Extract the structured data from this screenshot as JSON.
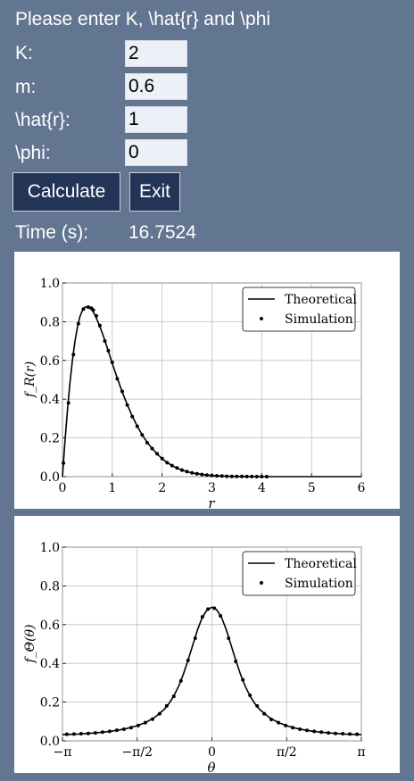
{
  "form": {
    "heading": "Please enter K, \\hat{r} and \\phi",
    "fields": [
      {
        "label": "K:",
        "value": "2"
      },
      {
        "label": "m:",
        "value": "0.6"
      },
      {
        "label": "\\hat{r}:",
        "value": "1"
      },
      {
        "label": "\\phi:",
        "value": "0"
      }
    ],
    "calculate_label": "Calculate",
    "exit_label": "Exit",
    "time_label": "Time (s):",
    "time_value": "16.7524"
  },
  "colors": {
    "background": "#637691",
    "button": "#223556",
    "input": "#eef0f7",
    "plot_line": "#000000"
  },
  "chart_data": [
    {
      "type": "line",
      "title": "",
      "xlabel": "r",
      "ylabel": "f_R(r)",
      "xlim": [
        0,
        6
      ],
      "ylim": [
        0,
        1
      ],
      "x_ticks": [
        0,
        1,
        2,
        3,
        4,
        5,
        6
      ],
      "x_tick_labels": [
        "0",
        "1",
        "2",
        "3",
        "4",
        "5",
        "6"
      ],
      "y_ticks": [
        0,
        0.2,
        0.4,
        0.6,
        0.8,
        1.0
      ],
      "y_tick_labels": [
        "0.0",
        "0.2",
        "0.4",
        "0.6",
        "0.8",
        "1.0"
      ],
      "grid": true,
      "legend": "top-right",
      "legend_entries": [
        "Theoretical",
        "Simulation"
      ],
      "series": [
        {
          "name": "Theoretical",
          "style": "line",
          "x": [
            0,
            0.05,
            0.1,
            0.15,
            0.2,
            0.25,
            0.3,
            0.35,
            0.4,
            0.45,
            0.5,
            0.55,
            0.6,
            0.65,
            0.7,
            0.75,
            0.8,
            0.85,
            0.9,
            0.95,
            1.0,
            1.1,
            1.2,
            1.3,
            1.4,
            1.5,
            1.6,
            1.7,
            1.8,
            1.9,
            2.0,
            2.1,
            2.2,
            2.3,
            2.4,
            2.5,
            2.6,
            2.7,
            2.8,
            2.9,
            3.0,
            3.1,
            3.2,
            3.3,
            3.4,
            3.5,
            3.6,
            3.7,
            3.8,
            3.9,
            4.0,
            4.2,
            4.4,
            4.6,
            4.8,
            5.0,
            5.2,
            5.4,
            5.6,
            5.8,
            6.0
          ],
          "values": [
            0,
            0.182,
            0.343,
            0.484,
            0.602,
            0.698,
            0.772,
            0.825,
            0.857,
            0.874,
            0.878,
            0.872,
            0.857,
            0.835,
            0.807,
            0.775,
            0.74,
            0.703,
            0.664,
            0.625,
            0.585,
            0.509,
            0.437,
            0.372,
            0.313,
            0.261,
            0.216,
            0.178,
            0.145,
            0.117,
            0.093,
            0.073,
            0.057,
            0.044,
            0.034,
            0.026,
            0.019,
            0.015,
            0.011,
            0.008,
            0.006,
            0.004,
            0.003,
            0.002,
            0.0015,
            0.001,
            0.0007,
            0.0005,
            0.0003,
            0.0002,
            0.0002,
            0.0001,
            0.0001,
            0,
            0,
            0,
            0,
            0,
            0,
            0,
            0
          ]
        },
        {
          "name": "Simulation",
          "style": "points",
          "x": [
            0.02,
            0.12,
            0.22,
            0.32,
            0.42,
            0.52,
            0.58,
            0.62,
            0.68,
            0.75,
            0.85,
            0.92,
            1.0,
            1.1,
            1.2,
            1.3,
            1.4,
            1.5,
            1.6,
            1.7,
            1.8,
            1.9,
            2.0,
            2.1,
            2.2,
            2.3,
            2.4,
            2.5,
            2.6,
            2.7,
            2.8,
            2.9,
            3.0,
            3.1,
            3.2,
            3.3,
            3.4,
            3.5,
            3.6,
            3.7,
            3.8,
            3.9,
            4.0,
            4.1
          ],
          "values": [
            0.07,
            0.38,
            0.63,
            0.79,
            0.865,
            0.875,
            0.87,
            0.86,
            0.83,
            0.78,
            0.7,
            0.65,
            0.59,
            0.505,
            0.44,
            0.37,
            0.31,
            0.26,
            0.215,
            0.175,
            0.145,
            0.118,
            0.093,
            0.072,
            0.057,
            0.045,
            0.033,
            0.026,
            0.02,
            0.015,
            0.011,
            0.008,
            0.006,
            0.004,
            0.003,
            0.002,
            0.0015,
            0.001,
            0.0007,
            0.0005,
            0.0003,
            0.0002,
            0.0002,
            0.0001
          ]
        }
      ]
    },
    {
      "type": "line",
      "title": "",
      "xlabel": "θ",
      "ylabel": "f_Θ(θ)",
      "xlim": [
        -3.14159,
        3.14159
      ],
      "ylim": [
        0,
        1
      ],
      "x_ticks": [
        -3.14159,
        -1.5708,
        0,
        1.5708,
        3.14159
      ],
      "x_tick_labels": [
        "−π",
        "−π/2",
        "0",
        "π/2",
        "π"
      ],
      "y_ticks": [
        0,
        0.2,
        0.4,
        0.6,
        0.8,
        1.0
      ],
      "y_tick_labels": [
        "0.0",
        "0.2",
        "0.4",
        "0.6",
        "0.8",
        "1.0"
      ],
      "grid": true,
      "legend": "top-right",
      "legend_entries": [
        "Theoretical",
        "Simulation"
      ],
      "series": [
        {
          "name": "Theoretical",
          "style": "line",
          "x": [
            -3.14159,
            -2.8,
            -2.5,
            -2.2,
            -2.0,
            -1.8,
            -1.6,
            -1.4,
            -1.2,
            -1.0,
            -0.9,
            -0.8,
            -0.7,
            -0.6,
            -0.5,
            -0.4,
            -0.3,
            -0.2,
            -0.1,
            0,
            0.1,
            0.2,
            0.3,
            0.4,
            0.5,
            0.6,
            0.7,
            0.8,
            0.9,
            1.0,
            1.2,
            1.4,
            1.6,
            1.8,
            2.0,
            2.2,
            2.5,
            2.8,
            3.14159
          ],
          "values": [
            0.032,
            0.035,
            0.04,
            0.047,
            0.054,
            0.063,
            0.076,
            0.094,
            0.121,
            0.163,
            0.193,
            0.232,
            0.282,
            0.344,
            0.417,
            0.497,
            0.575,
            0.638,
            0.677,
            0.69,
            0.677,
            0.638,
            0.575,
            0.497,
            0.417,
            0.344,
            0.282,
            0.232,
            0.193,
            0.163,
            0.121,
            0.094,
            0.076,
            0.063,
            0.054,
            0.047,
            0.04,
            0.035,
            0.032
          ]
        },
        {
          "name": "Simulation",
          "style": "points",
          "x": [
            -3.05,
            -2.9,
            -2.75,
            -2.6,
            -2.45,
            -2.3,
            -2.15,
            -2.0,
            -1.85,
            -1.7,
            -1.55,
            -1.4,
            -1.25,
            -1.1,
            -0.95,
            -0.8,
            -0.65,
            -0.5,
            -0.35,
            -0.2,
            -0.08,
            0.05,
            0.18,
            0.35,
            0.5,
            0.65,
            0.8,
            0.95,
            1.1,
            1.25,
            1.4,
            1.55,
            1.7,
            1.85,
            2.0,
            2.15,
            2.3,
            2.45,
            2.6,
            2.75,
            2.9,
            3.05
          ],
          "values": [
            0.034,
            0.035,
            0.037,
            0.038,
            0.041,
            0.045,
            0.049,
            0.055,
            0.06,
            0.068,
            0.079,
            0.094,
            0.112,
            0.14,
            0.18,
            0.23,
            0.31,
            0.415,
            0.53,
            0.64,
            0.68,
            0.685,
            0.645,
            0.53,
            0.41,
            0.315,
            0.235,
            0.18,
            0.14,
            0.11,
            0.094,
            0.079,
            0.068,
            0.06,
            0.054,
            0.049,
            0.045,
            0.041,
            0.038,
            0.037,
            0.035,
            0.034
          ]
        }
      ]
    }
  ]
}
